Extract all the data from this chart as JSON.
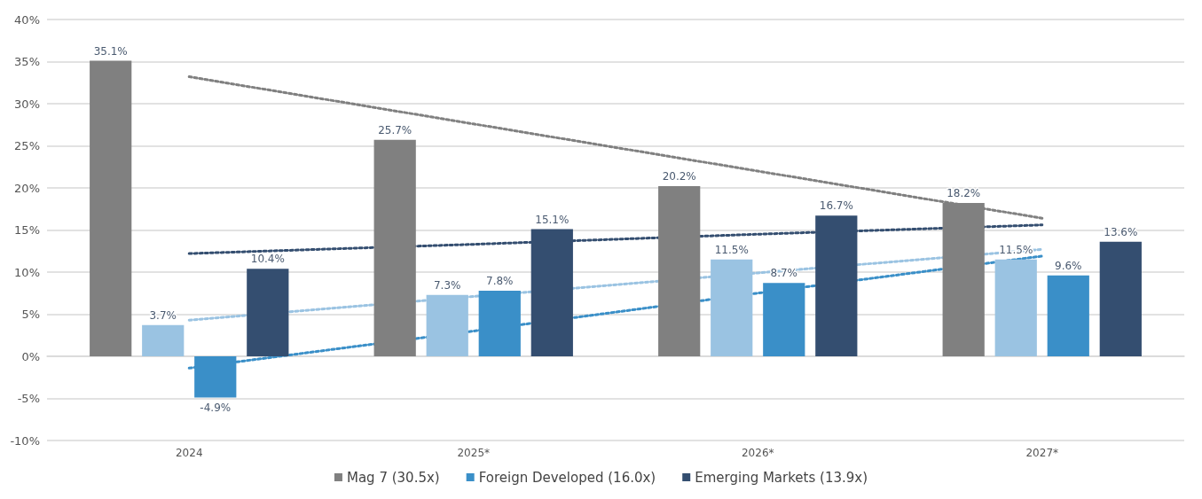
{
  "chart_data": {
    "type": "bar",
    "categories": [
      "2024",
      "2025*",
      "2026*",
      "2027*"
    ],
    "ylim": [
      -10,
      40
    ],
    "yticks": [
      {
        "value": -10,
        "label": "-10%"
      },
      {
        "value": -5,
        "label": "-5%"
      },
      {
        "value": 0,
        "label": "0%"
      },
      {
        "value": 5,
        "label": "5%"
      },
      {
        "value": 10,
        "label": "10%"
      },
      {
        "value": 15,
        "label": "15%"
      },
      {
        "value": 20,
        "label": "20%"
      },
      {
        "value": 25,
        "label": "25%"
      },
      {
        "value": 30,
        "label": "30%"
      },
      {
        "value": 35,
        "label": "35%"
      },
      {
        "value": 40,
        "label": "40%"
      }
    ],
    "grid": "y",
    "legend": "bottom",
    "series": [
      {
        "name": "Mag 7 (30.5x)",
        "color": "#808080",
        "values": [
          35.1,
          25.7,
          20.2,
          18.2
        ],
        "value_labels": [
          "35.1%",
          "25.7%",
          "20.2%",
          "18.2%"
        ]
      },
      {
        "color": "#9ac3e2",
        "values": [
          3.7,
          7.3,
          11.5,
          11.5
        ],
        "value_labels": [
          "3.7%",
          "7.3%",
          "11.5%",
          "11.5%"
        ]
      },
      {
        "name": "Foreign Developed (16.0x)",
        "color": "#3a8fc8",
        "values": [
          -4.9,
          7.8,
          8.7,
          9.6
        ],
        "value_labels": [
          "-4.9%",
          "7.8%",
          "8.7%",
          "9.6%"
        ]
      },
      {
        "name": "Emerging Markets (13.9x)",
        "color": "#344e70",
        "values": [
          10.4,
          15.1,
          16.7,
          13.6
        ],
        "value_labels": [
          "10.4%",
          "15.1%",
          "16.7%",
          "13.6%"
        ]
      },
      {
        "type": "line",
        "color": "#808080",
        "marker": "none",
        "line_style": "dotted",
        "values": [
          33.2,
          27.6,
          22.0,
          16.4
        ]
      },
      {
        "type": "line",
        "color": "#344e70",
        "marker": "none",
        "line_style": "dotted",
        "values": [
          12.2,
          13.3,
          14.5,
          15.6
        ]
      },
      {
        "type": "line",
        "color": "#9ac3e2",
        "marker": "none",
        "line_style": "dotted",
        "values": [
          4.3,
          7.1,
          9.9,
          12.7
        ]
      },
      {
        "type": "line",
        "color": "#3a8fc8",
        "marker": "none",
        "line_style": "dotted",
        "values": [
          -1.4,
          3.0,
          7.5,
          11.9
        ]
      }
    ]
  }
}
